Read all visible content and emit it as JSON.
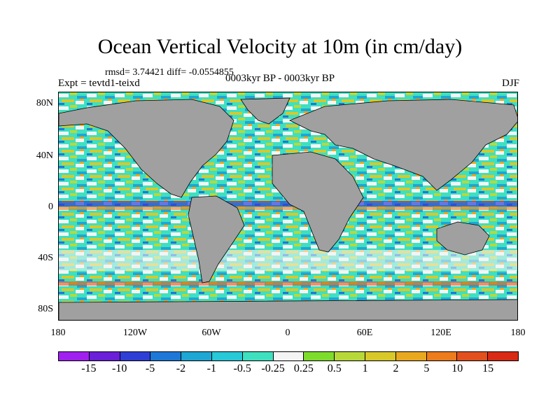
{
  "title": "Ocean Vertical Velocity at 10m (in cm/day)",
  "stats_line": "rmsd= 3.74421 diff= -0.0554855",
  "experiment": "Expt = tevtd1-teixd",
  "period": "0003kyr BP - 0003kyr BP",
  "season": "DJF",
  "lat_labels": [
    "80N",
    "40N",
    "0",
    "40S",
    "80S"
  ],
  "lon_labels": [
    "180",
    "120W",
    "60W",
    "0",
    "60E",
    "120E",
    "180"
  ],
  "colorbar": {
    "colors": [
      "#a020f0",
      "#6a1fd8",
      "#2f3fd6",
      "#1e78d8",
      "#1ea6d4",
      "#27c8d8",
      "#3ee0c0",
      "#f4f4f4",
      "#7edc2c",
      "#b8d83a",
      "#d8c82a",
      "#e8a820",
      "#ec7c1c",
      "#e2501e",
      "#d82a14"
    ],
    "labels": [
      "-15",
      "-10",
      "-5",
      "-2",
      "-1",
      "-0.5",
      "-0.25",
      "0.25",
      "0.5",
      "1",
      "2",
      "5",
      "10",
      "15"
    ]
  },
  "land_color": "#a0a0a0"
}
